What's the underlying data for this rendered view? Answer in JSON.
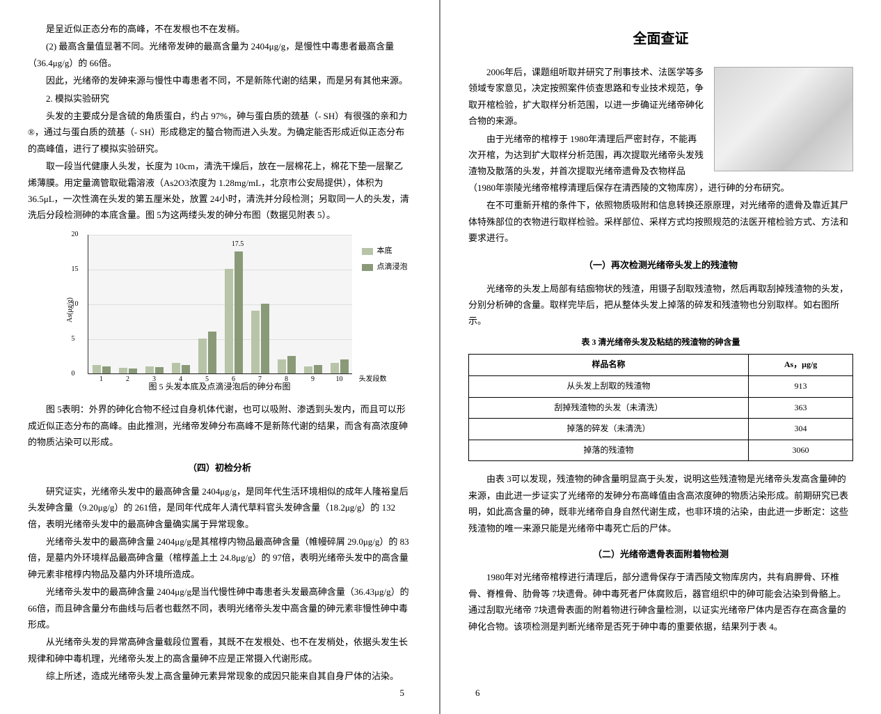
{
  "left": {
    "p1": "是呈近似正态分布的高峰，不在发根也不在发梢。",
    "p2": "(2) 最高含量值显著不同。光绪帝发砷的最高含量为 2404μg/g，是慢性中毒患者最高含量（36.4μg/g）的 66倍。",
    "p3": "因此，光绪帝的发砷来源与慢性中毒患者不同，不是新陈代谢的结果，而是另有其他来源。",
    "p4": "2. 模拟实验研究",
    "p5": "头发的主要成分是含硫的角质蛋白，约占 97%，砷与蛋白质的巯基（- SH）有很强的亲和力®，通过与蛋白质的巯基（- SH）形成稳定的螯合物而进入头发。为确定能否形成近似正态分布的高峰值，进行了模拟实验研究。",
    "p6": "取一段当代健康人头发，长度为 10cm，清洗干燥后，放在一层棉花上，棉花下垫一层聚乙烯薄膜。用定量滴管取砒霜溶液（As2O3浓度为 1.28mg/mL，北京市公安局提供），体积为 36.5μL，一次性滴在头发的第五厘米处，放置 24小时，清洗并分段检测；另取同一人的头发，清洗后分段检测砷的本底含量。图 5为这两缕头发的砷分布图（数据见附表 5）。",
    "chart": {
      "caption": "图 5  头发本底及点滴浸泡后的砷分布图",
      "ymax": 20,
      "yticks": [
        0,
        5,
        10,
        15,
        20
      ],
      "y_axis_title": "As(μg/g)",
      "x_axis_title": "头发段数",
      "peak_label": "17.5",
      "series_labels": [
        "本底",
        "点滴浸泡"
      ],
      "series_colors": [
        "#b8c4a8",
        "#8a9a78"
      ],
      "background": "#f5f5f5",
      "grid_color": "#dddddd",
      "categories": [
        "1",
        "2",
        "3",
        "4",
        "5",
        "6",
        "7",
        "8",
        "9",
        "10"
      ],
      "series_a": [
        1.2,
        0.8,
        1.0,
        1.5,
        5.0,
        15.0,
        9.0,
        2.0,
        1.0,
        1.5
      ],
      "series_b": [
        1.0,
        0.7,
        0.9,
        1.2,
        6.0,
        17.5,
        10.0,
        2.5,
        1.2,
        2.0
      ]
    },
    "p7": "图 5表明：外界的砷化合物不经过自身机体代谢，也可以吸附、渗透到头发内，而且可以形成近似正态分布的高峰。由此推测，光绪帝发砷分布高峰不是新陈代谢的结果，而含有高浓度砷的物质沾染可以形成。",
    "section4": "（四）初检分析",
    "p8": "研究证实，光绪帝头发中的最高砷含量 2404μg/g，是同年代生活环境相似的成年人隆裕皇后头发砷含量（9.20μg/g）的 261倍，是同年代成年人清代草料官头发砷含量（18.2μg/g）的 132倍，表明光绪帝头发中的最高砷含量确实属于异常现象。",
    "p9": "光绪帝头发中的最高砷含量 2404μg/g是其棺椁内物品最高砷含量（帷幔碎屑 29.0μg/g）的 83倍，是墓内外环境样品最高砷含量（棺椁盖上土 24.8μg/g）的 97倍，表明光绪帝头发中的高含量砷元素非棺椁内物品及墓内外环境所造成。",
    "p10": "光绪帝头发中的最高砷含量 2404μg/g是当代慢性砷中毒患者头发最高砷含量（36.43μg/g）的 66倍，而且砷含量分布曲线与后者也截然不同，表明光绪帝头发中高含量的砷元素非慢性砷中毒形成。",
    "p11": "从光绪帝头发的异常高砷含量载段位置看，其既不在发根处、也不在发梢处，依据头发生长规律和砷中毒机理，光绪帝头发上的高含量砷不应是正常摄入代谢形成。",
    "p12": "综上所述，造成光绪帝头发上高含量砷元素异常现象的成因只能来自其自身尸体的沾染。",
    "page_num": "5"
  },
  "right": {
    "title": "全面查证",
    "p1": "2006年后，课题组听取并研究了刑事技术、法医学等多领域专家意见，决定按照案件侦查思路和专业技术规范，争取开棺检验，扩大取样分析范围，以进一步确证光绪帝砷化合物的来源。",
    "p2": "由于光绪帝的棺椁于 1980年清理后严密封存，不能再次开棺，为达到扩大取样分析范围，再次提取光绪帝头发残渣物及散落的头发，并首次提取光绪帝遗骨及衣物样品（1980年崇陵光绪帝棺椁清理后保存在清西陵的文物库房），进行砷的分布研究。",
    "p3": "在不可重新开棺的条件下，依照物质吸附和信息转换还原原理，对光绪帝的遗骨及靠近其尸体特殊部位的衣物进行取样检验。采样部位、采样方式均按照规范的法医开棺检验方式、方法和要求进行。",
    "sub1": "（一）再次检测光绪帝头发上的残渣物",
    "p4": "光绪帝的头发上局部有结痂物状的残渣，用镊子刮取残渣物，然后再取刮掉残渣物的头发，分别分析砷的含量。取样完毕后，把从整体头发上掉落的碎发和残渣物也分别取样。如右图所示。",
    "table3": {
      "caption": "表 3  清光绪帝头发及粘结的残渣物的砷含量",
      "headers": [
        "样品名称",
        "As，μg/g"
      ],
      "rows": [
        [
          "从头发上刮取的残渣物",
          "913"
        ],
        [
          "刮掉残渣物的头发（未清洗）",
          "363"
        ],
        [
          "掉落的碎发（未清洗）",
          "304"
        ],
        [
          "掉落的残渣物",
          "3060"
        ]
      ]
    },
    "p5": "由表 3可以发现，残渣物的砷含量明显高于头发，说明这些残渣物是光绪帝头发高含量砷的来源，由此进一步证实了光绪帝的发砷分布高峰值由含高浓度砷的物质沾染形成。前期研究已表明，如此高含量的砷，既非光绪帝自身自然代谢生成，也非环境的沾染，由此进一步断定：这些残渣物的唯一来源只能是光绪帝中毒死亡后的尸体。",
    "sub2": "（二）光绪帝遗骨表面附着物检测",
    "p6": "1980年对光绪帝棺椁进行清理后，部分遗骨保存于清西陵文物库房内，共有肩胛骨、环椎骨、脊椎骨、肋骨等 7块遗骨。砷中毒死者尸体腐败后，器官组织中的砷可能会沾染到骨骼上。通过刮取光绪帝 7块遗骨表面的附着物进行砷含量检测，以证实光绪帝尸体内是否存在高含量的砷化合物。该项检测是判断光绪帝是否死于砷中毒的重要依据，结果列于表 4。",
    "page_num": "6"
  }
}
